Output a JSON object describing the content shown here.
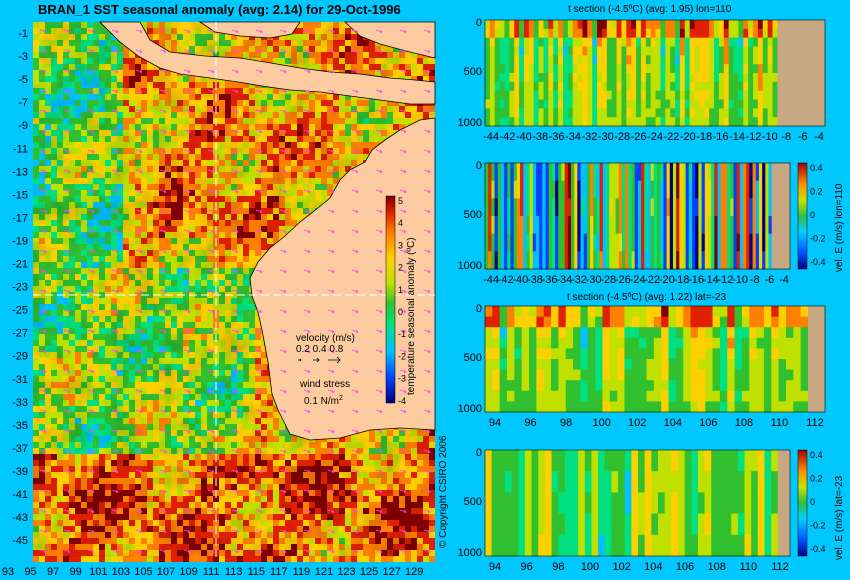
{
  "main_title": "BRAN_1  SST seasonal anomaly  (avg: 2.14)  for 29-Oct-1996",
  "copyright": "© Copyright CSIRO 2006",
  "colors": {
    "background": "#00c8ff",
    "land": "#fccca0",
    "section_land": "#c8a882",
    "arrow": "#ff40ff"
  },
  "chart_data": [
    {
      "type": "heatmap",
      "name": "sst_map",
      "title": "BRAN_1  SST seasonal anomaly  (avg: 2.14)  for 29-Oct-1996",
      "x_ticks": [
        "93",
        "95",
        "97",
        "99",
        "101",
        "103",
        "105",
        "107",
        "109",
        "111",
        "113",
        "115",
        "117",
        "119",
        "121",
        "123",
        "125",
        "127",
        "129"
      ],
      "y_ticks": [
        "-1",
        "-3",
        "-5",
        "-7",
        "-9",
        "-11",
        "-13",
        "-15",
        "-17",
        "-19",
        "-21",
        "-23",
        "-25",
        "-27",
        "-29",
        "-31",
        "-33",
        "-35",
        "-37",
        "-39",
        "-41",
        "-43",
        "-45"
      ],
      "xlim": [
        92,
        130
      ],
      "ylim": [
        -45,
        1
      ],
      "colorbar": {
        "label": "temperature seasonal anomaly (ºC)",
        "ticks": [
          "5",
          "4",
          "3",
          "2",
          "1",
          "0",
          "-1",
          "-2",
          "-3",
          "-4"
        ],
        "range": [
          -4,
          5
        ]
      },
      "legend": {
        "velocity_title": "velocity (m/s)",
        "velocity_scale": "0.2 0.4 0.8",
        "wind_title": "wind stress",
        "wind_scale": "0.1 N/m",
        "wind_sup": "2"
      },
      "section_lines": {
        "lon": 110,
        "lat": -23
      }
    },
    {
      "type": "heatmap",
      "name": "t_section_lon",
      "title": "t section (-4.5ºC) (avg: 1.95) lon=110",
      "x_ticks": [
        "-44",
        "-42",
        "-40",
        "-38",
        "-36",
        "-34",
        "-32",
        "-30",
        "-28",
        "-26",
        "-24",
        "-22",
        "-20",
        "-18",
        "-16",
        "-14",
        "-12",
        "-10",
        "-8",
        "-6",
        "-4"
      ],
      "y_ticks": [
        "0",
        "500",
        "1000"
      ]
    },
    {
      "type": "heatmap",
      "name": "vel_section_lon",
      "title": "",
      "x_ticks": [
        "-44",
        "-42",
        "-40",
        "-38",
        "-36",
        "-34",
        "-32",
        "-30",
        "-28",
        "-26",
        "-24",
        "-22",
        "-20",
        "-18",
        "-16",
        "-14",
        "-12",
        "-10",
        "-8",
        "-6",
        "-4"
      ],
      "y_ticks": [
        "0",
        "500",
        "1000"
      ],
      "colorbar": {
        "label": "vel. E (m/s) lon=110",
        "ticks": [
          "0.4",
          "0.2",
          "0",
          "-0.2",
          "-0.4"
        ]
      }
    },
    {
      "type": "heatmap",
      "name": "t_section_lat",
      "title": "t section (-4.5ºC) (avg: 1.22) lat=-23",
      "x_ticks": [
        "94",
        "96",
        "98",
        "100",
        "102",
        "104",
        "106",
        "108",
        "110",
        "112"
      ],
      "y_ticks": [
        "0",
        "500",
        "1000"
      ]
    },
    {
      "type": "heatmap",
      "name": "vel_section_lat",
      "title": "",
      "x_ticks": [
        "94",
        "96",
        "98",
        "100",
        "102",
        "104",
        "106",
        "108",
        "110",
        "112"
      ],
      "y_ticks": [
        "0",
        "500",
        "1000"
      ],
      "colorbar": {
        "label": "vel. E (m/s) lat=-23",
        "ticks": [
          "0.4",
          "0.2",
          "0",
          "-0.2",
          "-0.4"
        ]
      }
    }
  ]
}
